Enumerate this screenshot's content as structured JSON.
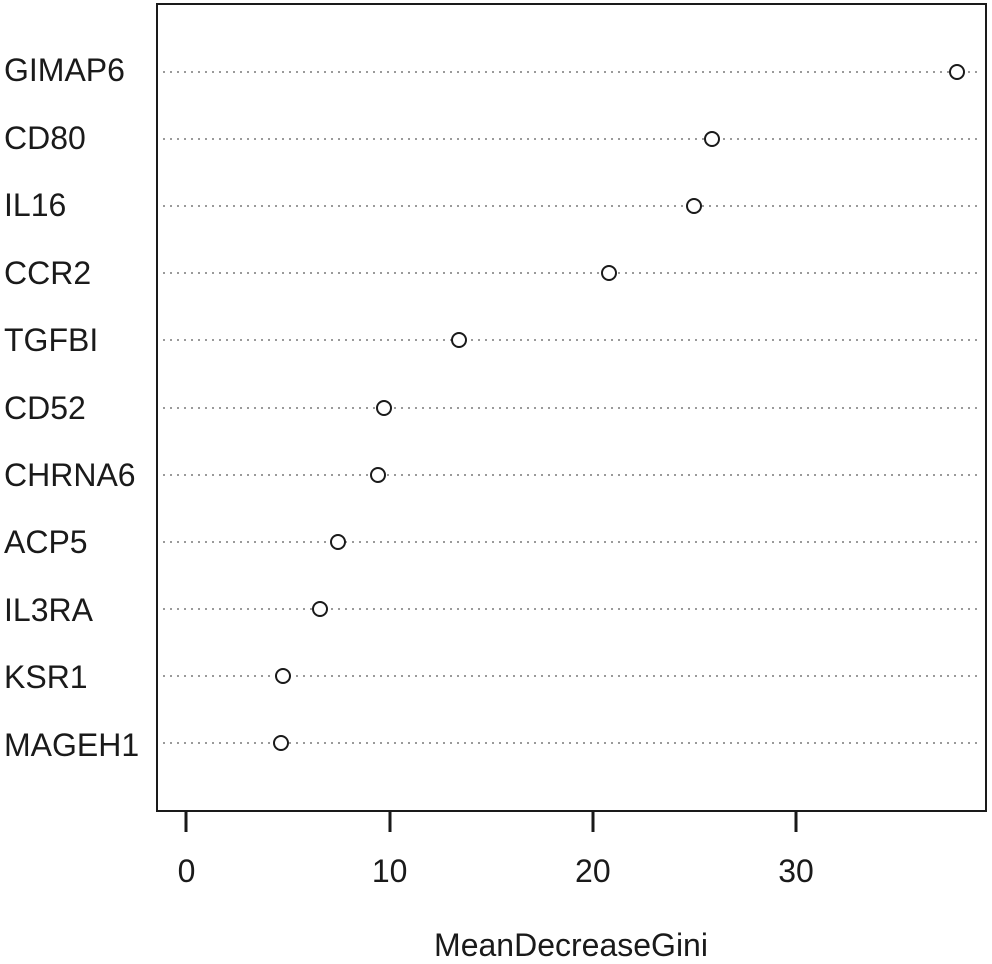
{
  "figure": {
    "xlabel": "MeanDecreaseGini"
  },
  "chart_data": {
    "type": "scatter",
    "subtype": "dotchart",
    "orientation": "horizontal",
    "title": "",
    "xlabel": "MeanDecreaseGini",
    "ylabel": "",
    "categories": [
      "GIMAP6",
      "CD80",
      "IL16",
      "CCR2",
      "TGFBI",
      "CD52",
      "CHRNA6",
      "ACP5",
      "IL3RA",
      "KSR1",
      "MAGEH1"
    ],
    "values": [
      38.0,
      25.9,
      25.0,
      20.8,
      13.4,
      9.7,
      9.4,
      7.4,
      6.5,
      4.7,
      4.6
    ],
    "xticks": [
      0,
      10,
      20,
      30
    ],
    "xlim": [
      -1.5,
      39.4
    ],
    "grid": "dotted-horizontal",
    "legend": "none",
    "marker": "open-circle",
    "colors": {
      "background": "#ffffff",
      "point_stroke": "#1a1a1a",
      "point_fill": "#ffffff",
      "grid": "#9a9a9a",
      "axis": "#1a1a1a",
      "text": "#1a1a1a"
    }
  }
}
